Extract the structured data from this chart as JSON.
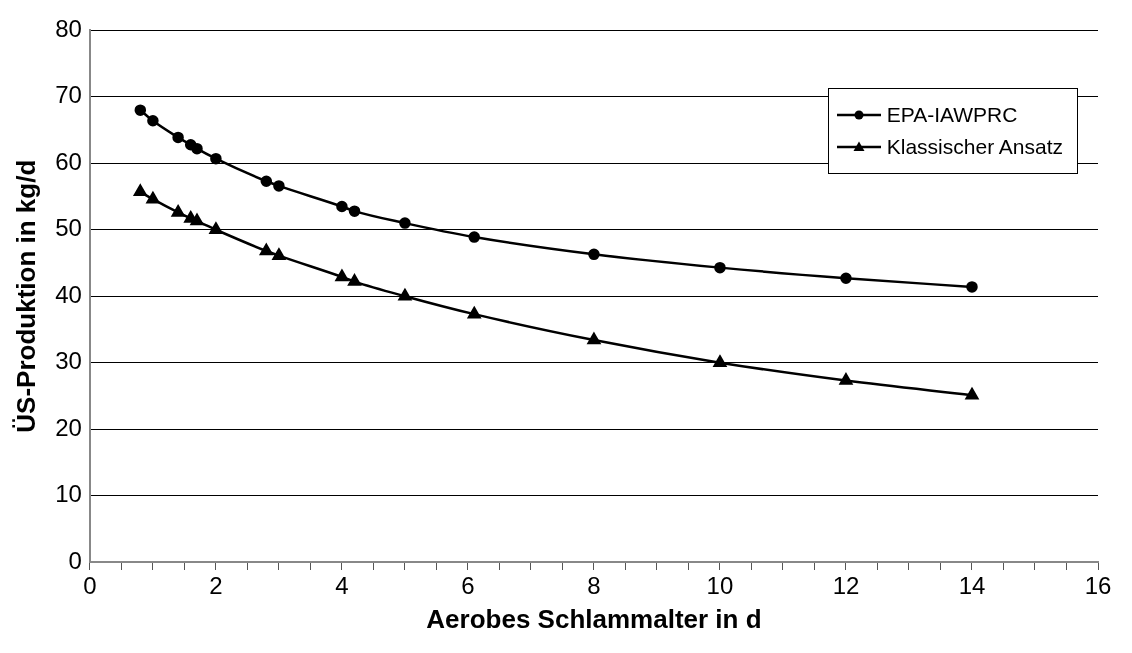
{
  "chart_data": {
    "type": "line",
    "xlabel": "Aerobes Schlammalter in d",
    "ylabel": "ÜS-Produktion in kg/d",
    "x": [
      0.8,
      1,
      1.4,
      1.6,
      1.7,
      2,
      2.8,
      3,
      4,
      4.2,
      5,
      6.1,
      8,
      10,
      12,
      14
    ],
    "series": [
      {
        "name": "EPA-IAWPRC",
        "color": "#000000",
        "marker": "circle",
        "values": [
          68,
          66.4,
          63.9,
          62.8,
          62.2,
          60.7,
          57.3,
          56.6,
          53.5,
          52.8,
          51.0,
          48.9,
          46.3,
          44.3,
          42.7,
          41.4
        ]
      },
      {
        "name": "Klassischer Ansatz",
        "color": "#000000",
        "marker": "triangle",
        "values": [
          55.7,
          54.6,
          52.6,
          51.7,
          51.3,
          50.0,
          46.8,
          46.1,
          42.9,
          42.2,
          40.0,
          37.3,
          33.4,
          30.0,
          27.3,
          25.1
        ]
      }
    ],
    "xlim": [
      0,
      16
    ],
    "xticks": [
      0,
      {
        "value": 0.5,
        "label": null
      },
      {
        "value": 1,
        "label": null
      },
      {
        "value": 1.5,
        "label": null
      },
      2,
      {
        "value": 2.5,
        "label": null
      },
      {
        "value": 3,
        "label": null
      },
      {
        "value": 3.5,
        "label": null
      },
      4,
      {
        "value": 4.5,
        "label": null
      },
      {
        "value": 5,
        "label": null
      },
      {
        "value": 5.5,
        "label": null
      },
      6,
      {
        "value": 6.5,
        "label": null
      },
      {
        "value": 7,
        "label": null
      },
      {
        "value": 7.5,
        "label": null
      },
      8,
      {
        "value": 8.5,
        "label": null
      },
      {
        "value": 9,
        "label": null
      },
      {
        "value": 9.5,
        "label": null
      },
      10,
      {
        "value": 10.5,
        "label": null
      },
      {
        "value": 11,
        "label": null
      },
      {
        "value": 11.5,
        "label": null
      },
      12,
      {
        "value": 12.5,
        "label": null
      },
      {
        "value": 13,
        "label": null
      },
      {
        "value": 13.5,
        "label": null
      },
      14,
      {
        "value": 14.5,
        "label": null
      },
      {
        "value": 15,
        "label": null
      },
      {
        "value": 15.5,
        "label": null
      },
      16
    ],
    "ylim": [
      0,
      80
    ],
    "yticks": [
      0,
      10,
      20,
      30,
      40,
      50,
      60,
      70,
      80
    ],
    "grid": "y",
    "legend": "top right",
    "line_style": "solid"
  }
}
